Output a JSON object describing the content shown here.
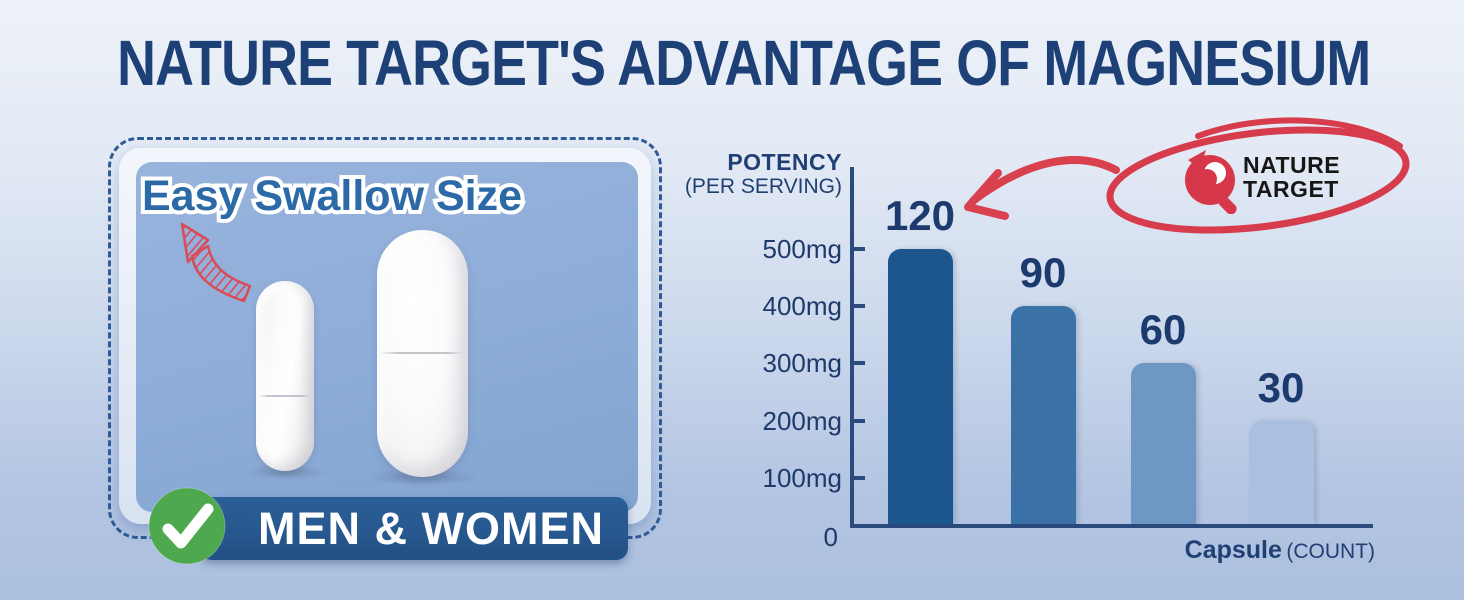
{
  "title": "NATURE TARGET'S ADVANTAGE OF MAGNESIUM",
  "left_panel": {
    "heading": "Easy Swallow Size",
    "audience_banner": "MEN & WOMEN"
  },
  "logo": {
    "line1": "NATURE",
    "line2": "TARGET"
  },
  "chart_data": {
    "type": "bar",
    "title": "",
    "categories": [
      "120",
      "90",
      "60",
      "30"
    ],
    "values_mg": [
      500,
      400,
      300,
      200
    ],
    "bar_colors": [
      "#1d568f",
      "#3a72a8",
      "#6f97c4",
      "#a9c0e0"
    ],
    "y_axis": {
      "label": "POTENCY",
      "sublabel": "(PER SERVING)",
      "ticks": [
        "500mg",
        "400mg",
        "300mg",
        "200mg",
        "100mg"
      ],
      "origin_label": "0",
      "ylim": [
        0,
        500
      ],
      "unit": "mg"
    },
    "x_axis": {
      "label": "Capsule",
      "sublabel": "(COUNT)"
    },
    "grid": "off",
    "annotation": "hand-drawn red arrow from circled NATURE TARGET logo pointing at the 120-count bar"
  },
  "colors": {
    "title_navy": "#1d4076",
    "chart_navy": "#1e3a6b",
    "axis_navy": "#2b4a7e",
    "accent_red": "#d63c4b",
    "panel_blue": "#8dacd8",
    "banner_blue": "#27588f",
    "heading_blue": "#2c6aa7",
    "check_green": "#4ea84e"
  }
}
